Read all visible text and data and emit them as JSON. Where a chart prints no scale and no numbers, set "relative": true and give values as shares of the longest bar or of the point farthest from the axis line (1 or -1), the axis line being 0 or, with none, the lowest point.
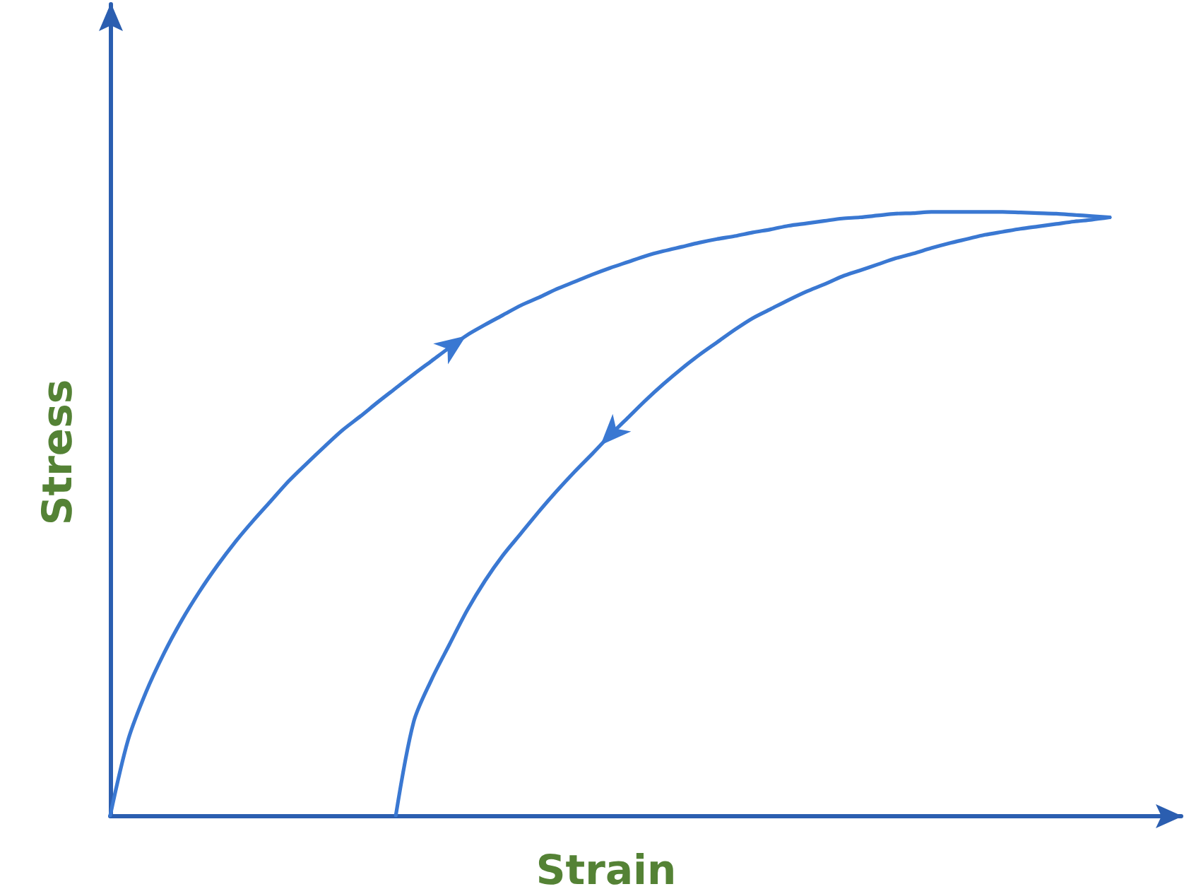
{
  "chart_data": {
    "type": "line",
    "xlabel": "Strain",
    "ylabel": "Stress",
    "relative": true,
    "categories": [
      null,
      null,
      null,
      null,
      null,
      null,
      null,
      null,
      null,
      null,
      null,
      null,
      null,
      null,
      null,
      null,
      null,
      null,
      null,
      null,
      null,
      null,
      null,
      null,
      null,
      null,
      null,
      null,
      null,
      null,
      null,
      null,
      null,
      null,
      null,
      null,
      null,
      null,
      null,
      null,
      null,
      null,
      null,
      null,
      null,
      null,
      null,
      null,
      null,
      null,
      null,
      null,
      null,
      null,
      null,
      null,
      null,
      null,
      null,
      null,
      null
    ],
    "series": [
      {
        "color": "#3a78d2",
        "values": [
          0,
          0.125,
          0.204,
          0.268,
          0.323,
          0.371,
          0.414,
          0.453,
          0.488,
          0.521,
          0.554,
          0.583,
          0.611,
          0.638,
          0.661,
          0.685,
          0.708,
          0.731,
          0.753,
          0.775,
          0.796,
          0.813,
          0.829,
          0.845,
          0.858,
          0.872,
          0.884,
          0.896,
          0.907,
          0.917,
          0.927,
          0.935,
          0.942,
          0.949,
          0.955,
          0.96,
          0.966,
          0.971,
          0.977,
          0.981,
          0.985,
          0.989,
          0.991,
          0.994,
          0.997,
          0.998,
          1,
          1,
          1,
          1,
          1,
          0.999,
          0.998,
          0.997,
          0.995,
          0.993,
          0.991,
          null,
          null,
          null,
          null
        ]
      },
      {
        "color": "#3a78d2",
        "values": [
          null,
          null,
          null,
          null,
          null,
          null,
          null,
          null,
          null,
          null,
          null,
          null,
          null,
          null,
          null,
          null,
          0,
          0.155,
          0.225,
          0.283,
          0.34,
          0.389,
          0.431,
          0.467,
          0.503,
          0.537,
          0.569,
          0.599,
          0.63,
          0.659,
          0.688,
          0.715,
          0.74,
          0.763,
          0.784,
          0.805,
          0.824,
          0.839,
          0.854,
          0.868,
          0.88,
          0.893,
          0.903,
          0.913,
          0.923,
          0.931,
          0.94,
          0.948,
          0.955,
          0.962,
          0.967,
          0.972,
          0.976,
          0.98,
          0.984,
          0.987,
          0.991,
          null,
          null,
          null,
          null
        ]
      }
    ]
  }
}
